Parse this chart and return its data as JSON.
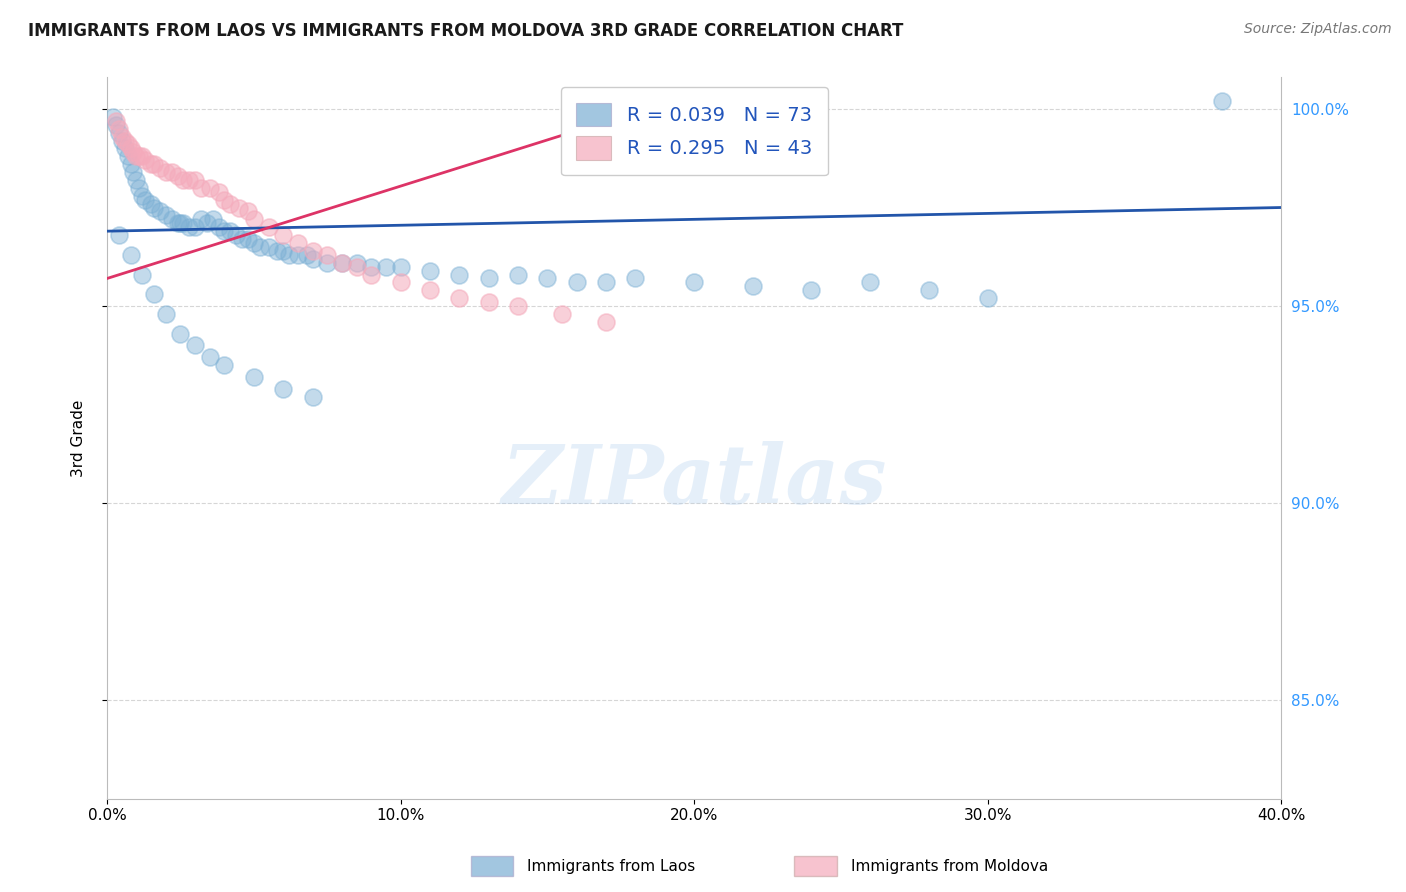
{
  "title": "IMMIGRANTS FROM LAOS VS IMMIGRANTS FROM MOLDOVA 3RD GRADE CORRELATION CHART",
  "source": "Source: ZipAtlas.com",
  "ylabel": "3rd Grade",
  "x_min": 0.0,
  "x_max": 0.4,
  "y_min": 0.825,
  "y_max": 1.008,
  "x_ticks": [
    0.0,
    0.1,
    0.2,
    0.3,
    0.4
  ],
  "x_tick_labels": [
    "0.0%",
    "10.0%",
    "20.0%",
    "30.0%",
    "40.0%"
  ],
  "y_ticks": [
    0.85,
    0.9,
    0.95,
    1.0
  ],
  "y_tick_labels": [
    "85.0%",
    "90.0%",
    "95.0%",
    "100.0%"
  ],
  "legend1_label": "Immigrants from Laos",
  "legend2_label": "Immigrants from Moldova",
  "r1": 0.039,
  "n1": 73,
  "r2": 0.295,
  "n2": 43,
  "blue_color": "#7BAFD4",
  "pink_color": "#F4AABB",
  "blue_line_color": "#2255AA",
  "pink_line_color": "#DD3366",
  "legend_r_color": "#2255BB",
  "watermark": "ZIPatlas",
  "blue_line_x0": 0.0,
  "blue_line_y0": 0.969,
  "blue_line_x1": 0.4,
  "blue_line_y1": 0.975,
  "pink_line_x0": 0.0,
  "pink_line_y0": 0.957,
  "pink_line_x1": 0.175,
  "pink_line_y1": 0.998,
  "blue_x": [
    0.002,
    0.003,
    0.004,
    0.005,
    0.006,
    0.007,
    0.008,
    0.009,
    0.01,
    0.011,
    0.012,
    0.013,
    0.015,
    0.016,
    0.018,
    0.02,
    0.022,
    0.024,
    0.025,
    0.026,
    0.028,
    0.03,
    0.032,
    0.034,
    0.036,
    0.038,
    0.04,
    0.042,
    0.044,
    0.046,
    0.048,
    0.05,
    0.052,
    0.055,
    0.058,
    0.06,
    0.062,
    0.065,
    0.068,
    0.07,
    0.075,
    0.08,
    0.085,
    0.09,
    0.095,
    0.1,
    0.11,
    0.12,
    0.13,
    0.14,
    0.15,
    0.16,
    0.17,
    0.18,
    0.2,
    0.22,
    0.24,
    0.26,
    0.28,
    0.3,
    0.004,
    0.008,
    0.012,
    0.016,
    0.02,
    0.025,
    0.03,
    0.035,
    0.04,
    0.05,
    0.06,
    0.07,
    0.38
  ],
  "blue_y": [
    0.998,
    0.996,
    0.994,
    0.992,
    0.99,
    0.988,
    0.986,
    0.984,
    0.982,
    0.98,
    0.978,
    0.977,
    0.976,
    0.975,
    0.974,
    0.973,
    0.972,
    0.971,
    0.971,
    0.971,
    0.97,
    0.97,
    0.972,
    0.971,
    0.972,
    0.97,
    0.969,
    0.969,
    0.968,
    0.967,
    0.967,
    0.966,
    0.965,
    0.965,
    0.964,
    0.964,
    0.963,
    0.963,
    0.963,
    0.962,
    0.961,
    0.961,
    0.961,
    0.96,
    0.96,
    0.96,
    0.959,
    0.958,
    0.957,
    0.958,
    0.957,
    0.956,
    0.956,
    0.957,
    0.956,
    0.955,
    0.954,
    0.956,
    0.954,
    0.952,
    0.968,
    0.963,
    0.958,
    0.953,
    0.948,
    0.943,
    0.94,
    0.937,
    0.935,
    0.932,
    0.929,
    0.927,
    1.002
  ],
  "pink_x": [
    0.003,
    0.004,
    0.005,
    0.006,
    0.007,
    0.008,
    0.009,
    0.01,
    0.011,
    0.012,
    0.013,
    0.015,
    0.016,
    0.018,
    0.02,
    0.022,
    0.024,
    0.026,
    0.028,
    0.03,
    0.032,
    0.035,
    0.038,
    0.04,
    0.042,
    0.045,
    0.048,
    0.05,
    0.055,
    0.06,
    0.065,
    0.07,
    0.075,
    0.08,
    0.085,
    0.09,
    0.1,
    0.11,
    0.12,
    0.13,
    0.14,
    0.155,
    0.17
  ],
  "pink_y": [
    0.997,
    0.995,
    0.993,
    0.992,
    0.991,
    0.99,
    0.989,
    0.988,
    0.988,
    0.988,
    0.987,
    0.986,
    0.986,
    0.985,
    0.984,
    0.984,
    0.983,
    0.982,
    0.982,
    0.982,
    0.98,
    0.98,
    0.979,
    0.977,
    0.976,
    0.975,
    0.974,
    0.972,
    0.97,
    0.968,
    0.966,
    0.964,
    0.963,
    0.961,
    0.96,
    0.958,
    0.956,
    0.954,
    0.952,
    0.951,
    0.95,
    0.948,
    0.946
  ]
}
